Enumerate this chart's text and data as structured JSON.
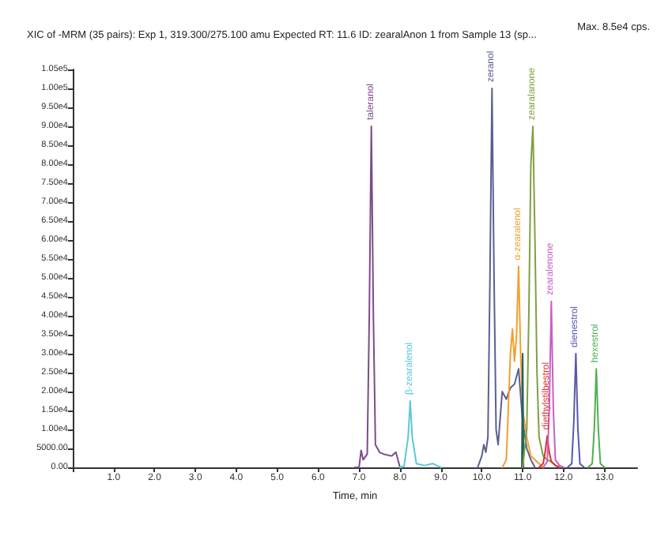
{
  "chart_data": {
    "type": "line",
    "title": "XIC of -MRM (35 pairs): Exp 1, 319.300/275.100 amu Expected RT: 11.6 ID: zearalAnon 1 from Sample 13 (sp...",
    "annotations": [
      "Max. 8.5e4 cps."
    ],
    "xlabel": "Time, min",
    "xlim": [
      0,
      13.8
    ],
    "xticks": [
      {
        "value": 0,
        "label": null
      },
      {
        "value": 1,
        "label": "1.0"
      },
      {
        "value": 2,
        "label": "2.0"
      },
      {
        "value": 3,
        "label": "3.0"
      },
      {
        "value": 4,
        "label": "4.0"
      },
      {
        "value": 5,
        "label": "5.0"
      },
      {
        "value": 6,
        "label": "6.0"
      },
      {
        "value": 7,
        "label": "7.0"
      },
      {
        "value": 8,
        "label": "8.0"
      },
      {
        "value": 9,
        "label": "9.0"
      },
      {
        "value": 10,
        "label": "10.0"
      },
      {
        "value": 11,
        "label": "11.0"
      },
      {
        "value": 12,
        "label": "12.0"
      },
      {
        "value": 13,
        "label": "13.0"
      }
    ],
    "ylim": [
      0,
      105000
    ],
    "yticks": [
      {
        "value": 0,
        "label": "0.00"
      },
      {
        "value": 5000,
        "label": "5000.00"
      },
      {
        "value": 10000,
        "label": "1.00e4"
      },
      {
        "value": 15000,
        "label": "1.50e4"
      },
      {
        "value": 20000,
        "label": "2.00e4"
      },
      {
        "value": 25000,
        "label": "2.50e4"
      },
      {
        "value": 30000,
        "label": "3.00e4"
      },
      {
        "value": 35000,
        "label": "3.50e4"
      },
      {
        "value": 40000,
        "label": "4.00e4"
      },
      {
        "value": 45000,
        "label": "4.50e4"
      },
      {
        "value": 50000,
        "label": "5.00e4"
      },
      {
        "value": 55000,
        "label": "5.50e4"
      },
      {
        "value": 60000,
        "label": "6.00e4"
      },
      {
        "value": 65000,
        "label": "6.50e4"
      },
      {
        "value": 70000,
        "label": "7.00e4"
      },
      {
        "value": 75000,
        "label": "7.50e4"
      },
      {
        "value": 80000,
        "label": "8.00e4"
      },
      {
        "value": 85000,
        "label": "8.50e4"
      },
      {
        "value": 90000,
        "label": "9.00e4"
      },
      {
        "value": 95000,
        "label": "9.50e4"
      },
      {
        "value": 100000,
        "label": "1.00e5"
      },
      {
        "value": 105000,
        "label": "1.05e5"
      }
    ],
    "grid": false,
    "legend": false,
    "marker": "none",
    "line_style": "solid",
    "series": [
      {
        "name": "taleranol",
        "color": "#7d4a8c",
        "x": [
          6.9,
          7.0,
          7.05,
          7.1,
          7.2,
          7.25,
          7.3,
          7.35,
          7.4,
          7.5,
          7.6,
          7.8,
          7.9,
          8.0,
          8.05
        ],
        "values": [
          0,
          0,
          4500,
          2000,
          3500,
          40000,
          90000,
          40000,
          6000,
          4000,
          3500,
          3000,
          4000,
          0,
          0
        ]
      },
      {
        "name": "β-zearalenol",
        "color": "#5bc8d8",
        "x": [
          8.0,
          8.1,
          8.2,
          8.25,
          8.3,
          8.4,
          8.6,
          8.8,
          8.9,
          9.0
        ],
        "values": [
          0,
          300,
          8000,
          17500,
          8000,
          1000,
          500,
          1000,
          500,
          0
        ]
      },
      {
        "name": "zeranol",
        "color": "#5a6090",
        "x": [
          9.9,
          10.0,
          10.05,
          10.1,
          10.15,
          10.2,
          10.25,
          10.3,
          10.35,
          10.4,
          10.5,
          10.6,
          10.7,
          10.8,
          10.9,
          11.0,
          11.1,
          11.2,
          11.3
        ],
        "values": [
          0,
          3000,
          6000,
          4000,
          8000,
          50000,
          100000,
          50000,
          10000,
          6000,
          20000,
          18000,
          21000,
          22000,
          26000,
          12000,
          5000,
          2000,
          0
        ]
      },
      {
        "name": "α-zearalenol",
        "color": "#f0a030",
        "x": [
          10.5,
          10.6,
          10.7,
          10.75,
          10.8,
          10.85,
          10.9,
          10.95,
          11.0,
          11.1,
          11.2,
          11.4,
          11.5
        ],
        "values": [
          0,
          2000,
          30000,
          36500,
          28000,
          35000,
          53000,
          30000,
          15000,
          8000,
          3000,
          1000,
          0
        ]
      },
      {
        "color": "#206060",
        "x": [
          10.98,
          11.0,
          11.02
        ],
        "values": [
          0,
          30000,
          0
        ]
      },
      {
        "name": "zearalanone",
        "color": "#80a040",
        "x": [
          11.0,
          11.1,
          11.15,
          11.2,
          11.25,
          11.3,
          11.35,
          11.4,
          11.5,
          11.6,
          11.7,
          11.8,
          11.9
        ],
        "values": [
          0,
          10000,
          40000,
          80000,
          90000,
          60000,
          25000,
          8000,
          3000,
          2000,
          1500,
          500,
          0
        ]
      },
      {
        "name": "diethylstilbestrol",
        "color": "#e03030",
        "x": [
          11.4,
          11.5,
          11.55,
          11.6,
          11.65,
          11.7,
          11.8,
          11.9
        ],
        "values": [
          0,
          1000,
          4000,
          8300,
          4000,
          1500,
          500,
          0
        ]
      },
      {
        "name": "zearalenone",
        "color": "#c860c0",
        "x": [
          11.5,
          11.6,
          11.65,
          11.7,
          11.75,
          11.8,
          11.9,
          12.0
        ],
        "values": [
          0,
          1500,
          15000,
          43800,
          15000,
          2000,
          500,
          0
        ]
      },
      {
        "name": "dienestrol",
        "color": "#5858b0",
        "x": [
          12.1,
          12.2,
          12.25,
          12.3,
          12.35,
          12.4,
          12.5
        ],
        "values": [
          0,
          1000,
          12000,
          30000,
          10000,
          1000,
          0
        ]
      },
      {
        "name": "hexestrol",
        "color": "#50b050",
        "x": [
          12.6,
          12.7,
          12.75,
          12.8,
          12.85,
          12.9,
          13.0
        ],
        "values": [
          0,
          1000,
          10000,
          26000,
          10000,
          1000,
          0
        ]
      }
    ]
  }
}
